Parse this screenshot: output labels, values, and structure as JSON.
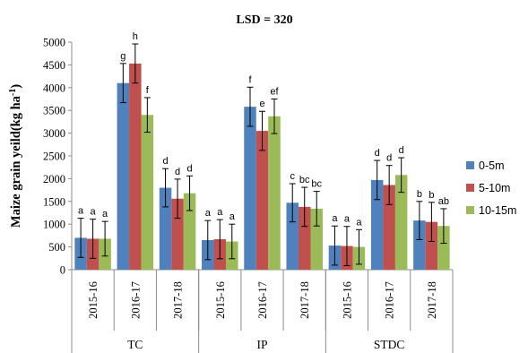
{
  "chart_data": {
    "type": "bar",
    "title": "LSD = 320",
    "ylabel": "Maize grain yeild(kg ha-1)",
    "ylim": [
      0,
      5000
    ],
    "yticks": [
      0,
      500,
      1000,
      1500,
      2000,
      2500,
      3000,
      3500,
      4000,
      4500,
      5000
    ],
    "grid": false,
    "legend_position": "right",
    "colors": [
      "#4f81bd",
      "#c0504d",
      "#9bbb59"
    ],
    "groups": [
      {
        "name": "TC",
        "years": [
          "2015-16",
          "2016-17",
          "2017-18"
        ]
      },
      {
        "name": "IP",
        "years": [
          "2015-16",
          "2016-17",
          "2017-18"
        ]
      },
      {
        "name": "STDC",
        "years": [
          "2015-16",
          "2016-17",
          "2017-18"
        ]
      }
    ],
    "series": [
      {
        "name": "0-5m",
        "values": [
          700,
          4100,
          1800,
          650,
          3580,
          1470,
          530,
          1970,
          1080
        ],
        "errors": [
          430,
          430,
          420,
          430,
          430,
          420,
          430,
          430,
          420
        ],
        "letters": [
          "a",
          "g",
          "d",
          "a",
          "f",
          "c",
          "a",
          "d",
          "b"
        ]
      },
      {
        "name": "5-10m",
        "values": [
          680,
          4530,
          1560,
          670,
          3050,
          1380,
          520,
          1860,
          1050
        ],
        "errors": [
          430,
          430,
          430,
          430,
          430,
          430,
          430,
          430,
          430
        ],
        "letters": [
          "a",
          "h",
          "d",
          "a",
          "e",
          "bc",
          "a",
          "d",
          "b"
        ]
      },
      {
        "name": "10-15m",
        "values": [
          680,
          3400,
          1680,
          620,
          3370,
          1340,
          500,
          2080,
          960
        ],
        "errors": [
          380,
          380,
          380,
          380,
          380,
          380,
          380,
          380,
          380
        ],
        "letters": [
          "a",
          "f",
          "d",
          "a",
          "ef",
          "bc",
          "a",
          "d",
          "ab"
        ]
      }
    ]
  }
}
